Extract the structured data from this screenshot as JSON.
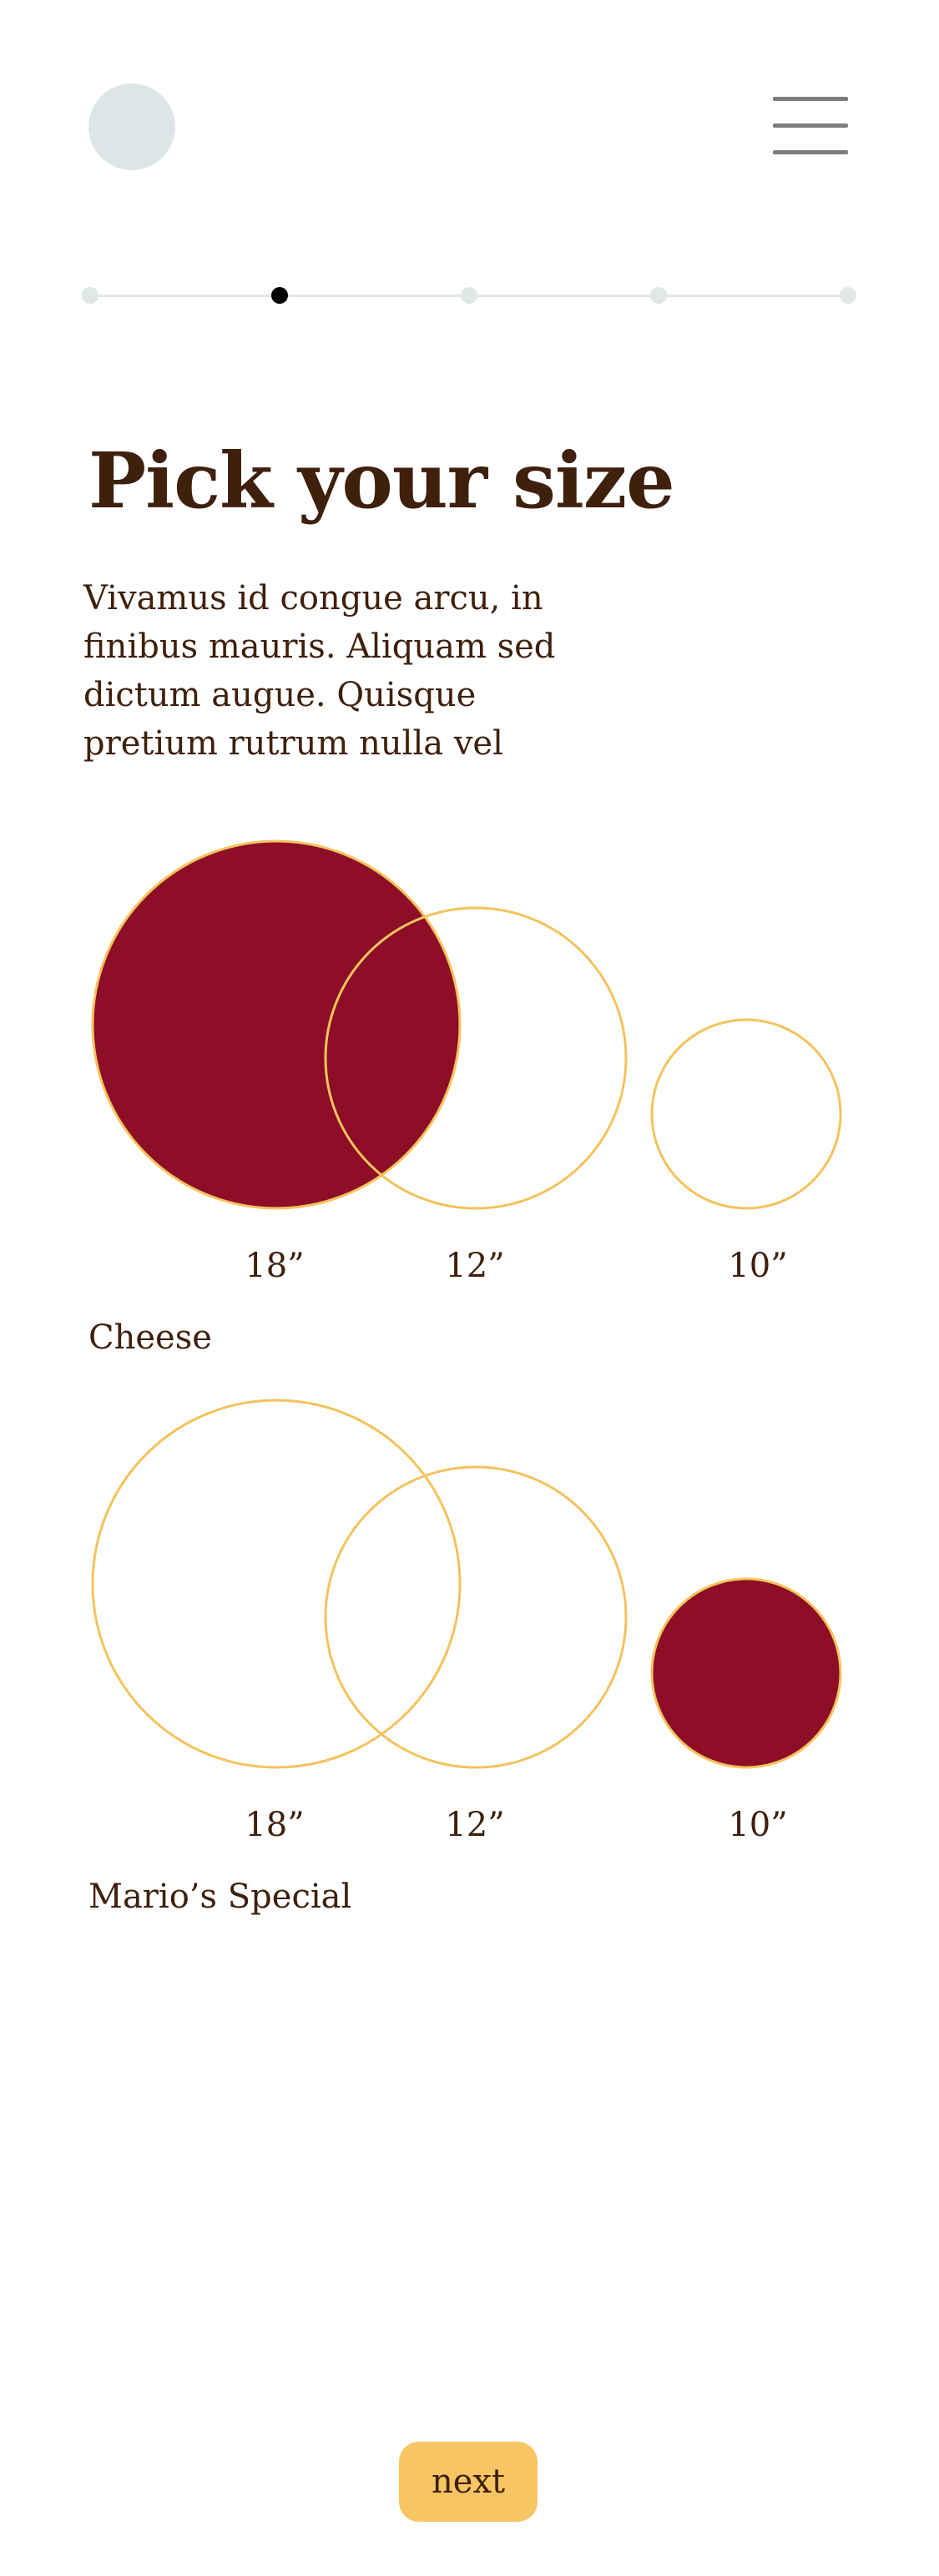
{
  "header": {
    "avatar_icon": "avatar-circle",
    "menu_icon": "hamburger-icon"
  },
  "progress": {
    "total_steps": 5,
    "current_step": 2,
    "colors": {
      "inactive": "#dfe7e7",
      "active": "#000000"
    }
  },
  "page": {
    "title": "Pick your size",
    "intro": "Vivamus id congue arcu, in finibus mauris. Aliquam sed dictum augue. Quisque pretium rutrum nulla vel"
  },
  "products": [
    {
      "name": "Cheese",
      "sizes": [
        {
          "label": "18”",
          "selected": true
        },
        {
          "label": "12”",
          "selected": false
        },
        {
          "label": "10”",
          "selected": false
        }
      ]
    },
    {
      "name": "Mario’s Special",
      "sizes": [
        {
          "label": "18”",
          "selected": false
        },
        {
          "label": "12”",
          "selected": false
        },
        {
          "label": "10”",
          "selected": true
        }
      ]
    }
  ],
  "colors": {
    "selected_fill": "#8d0e26",
    "outline": "#f4c35e",
    "text": "#3f200c",
    "button": "#f8c564"
  },
  "actions": {
    "next_label": "next"
  }
}
